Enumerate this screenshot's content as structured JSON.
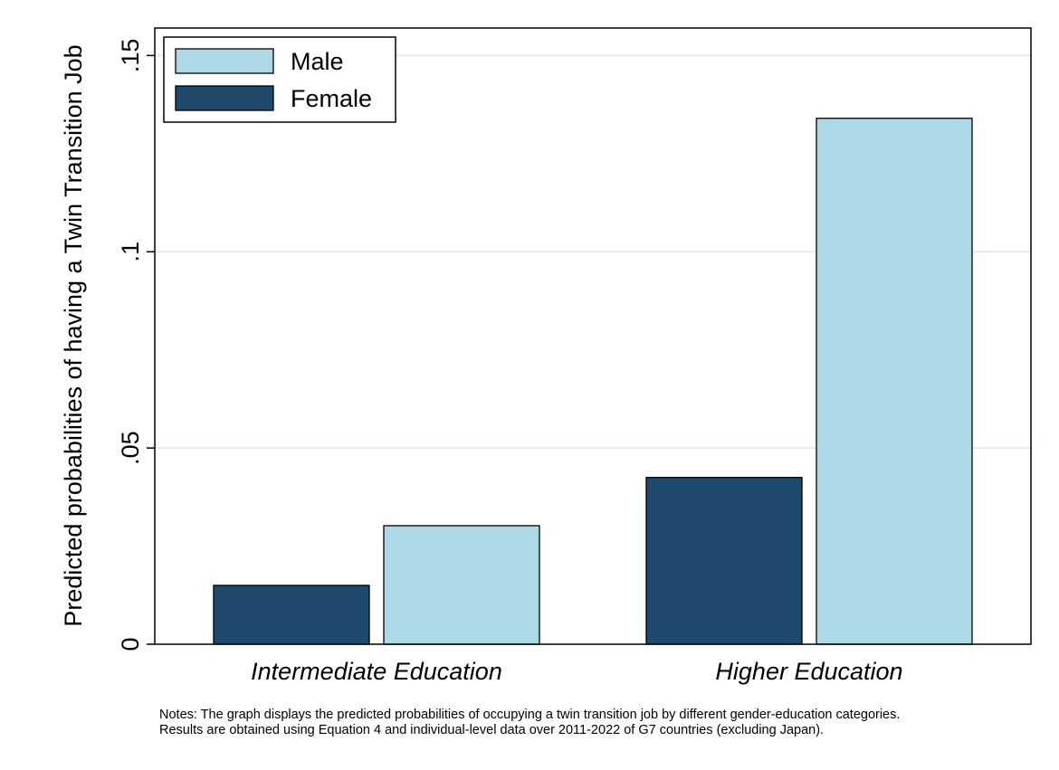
{
  "chart_data": {
    "type": "bar",
    "categories": [
      "Intermediate Education",
      "Higher Education"
    ],
    "series": [
      {
        "name": "Female",
        "values": [
          0.015,
          0.0425
        ]
      },
      {
        "name": "Male",
        "values": [
          0.0302,
          0.134
        ]
      }
    ],
    "ylabel": "Predicted probabilities of having a Twin Transition Job",
    "xlabel": "",
    "ylim": [
      0,
      0.157
    ],
    "yticks": [
      {
        "value": 0,
        "label": "0"
      },
      {
        "value": 0.05,
        "label": ".05"
      },
      {
        "value": 0.1,
        "label": ".1"
      },
      {
        "value": 0.15,
        "label": ".15"
      }
    ],
    "legend": {
      "placement": "top-left",
      "entries": [
        "Male",
        "Female"
      ]
    },
    "grid": true,
    "colors": {
      "Male": "#add8e6",
      "Female": "#1f4a6e",
      "grid": "#e3ecef"
    }
  },
  "notes": {
    "line1": "Notes: The graph displays the predicted probabilities of occupying a twin transition job by different gender-education categories.",
    "line2": "Results are obtained using Equation 4 and individual-level data over 2011-2022 of G7 countries (excluding Japan)."
  }
}
